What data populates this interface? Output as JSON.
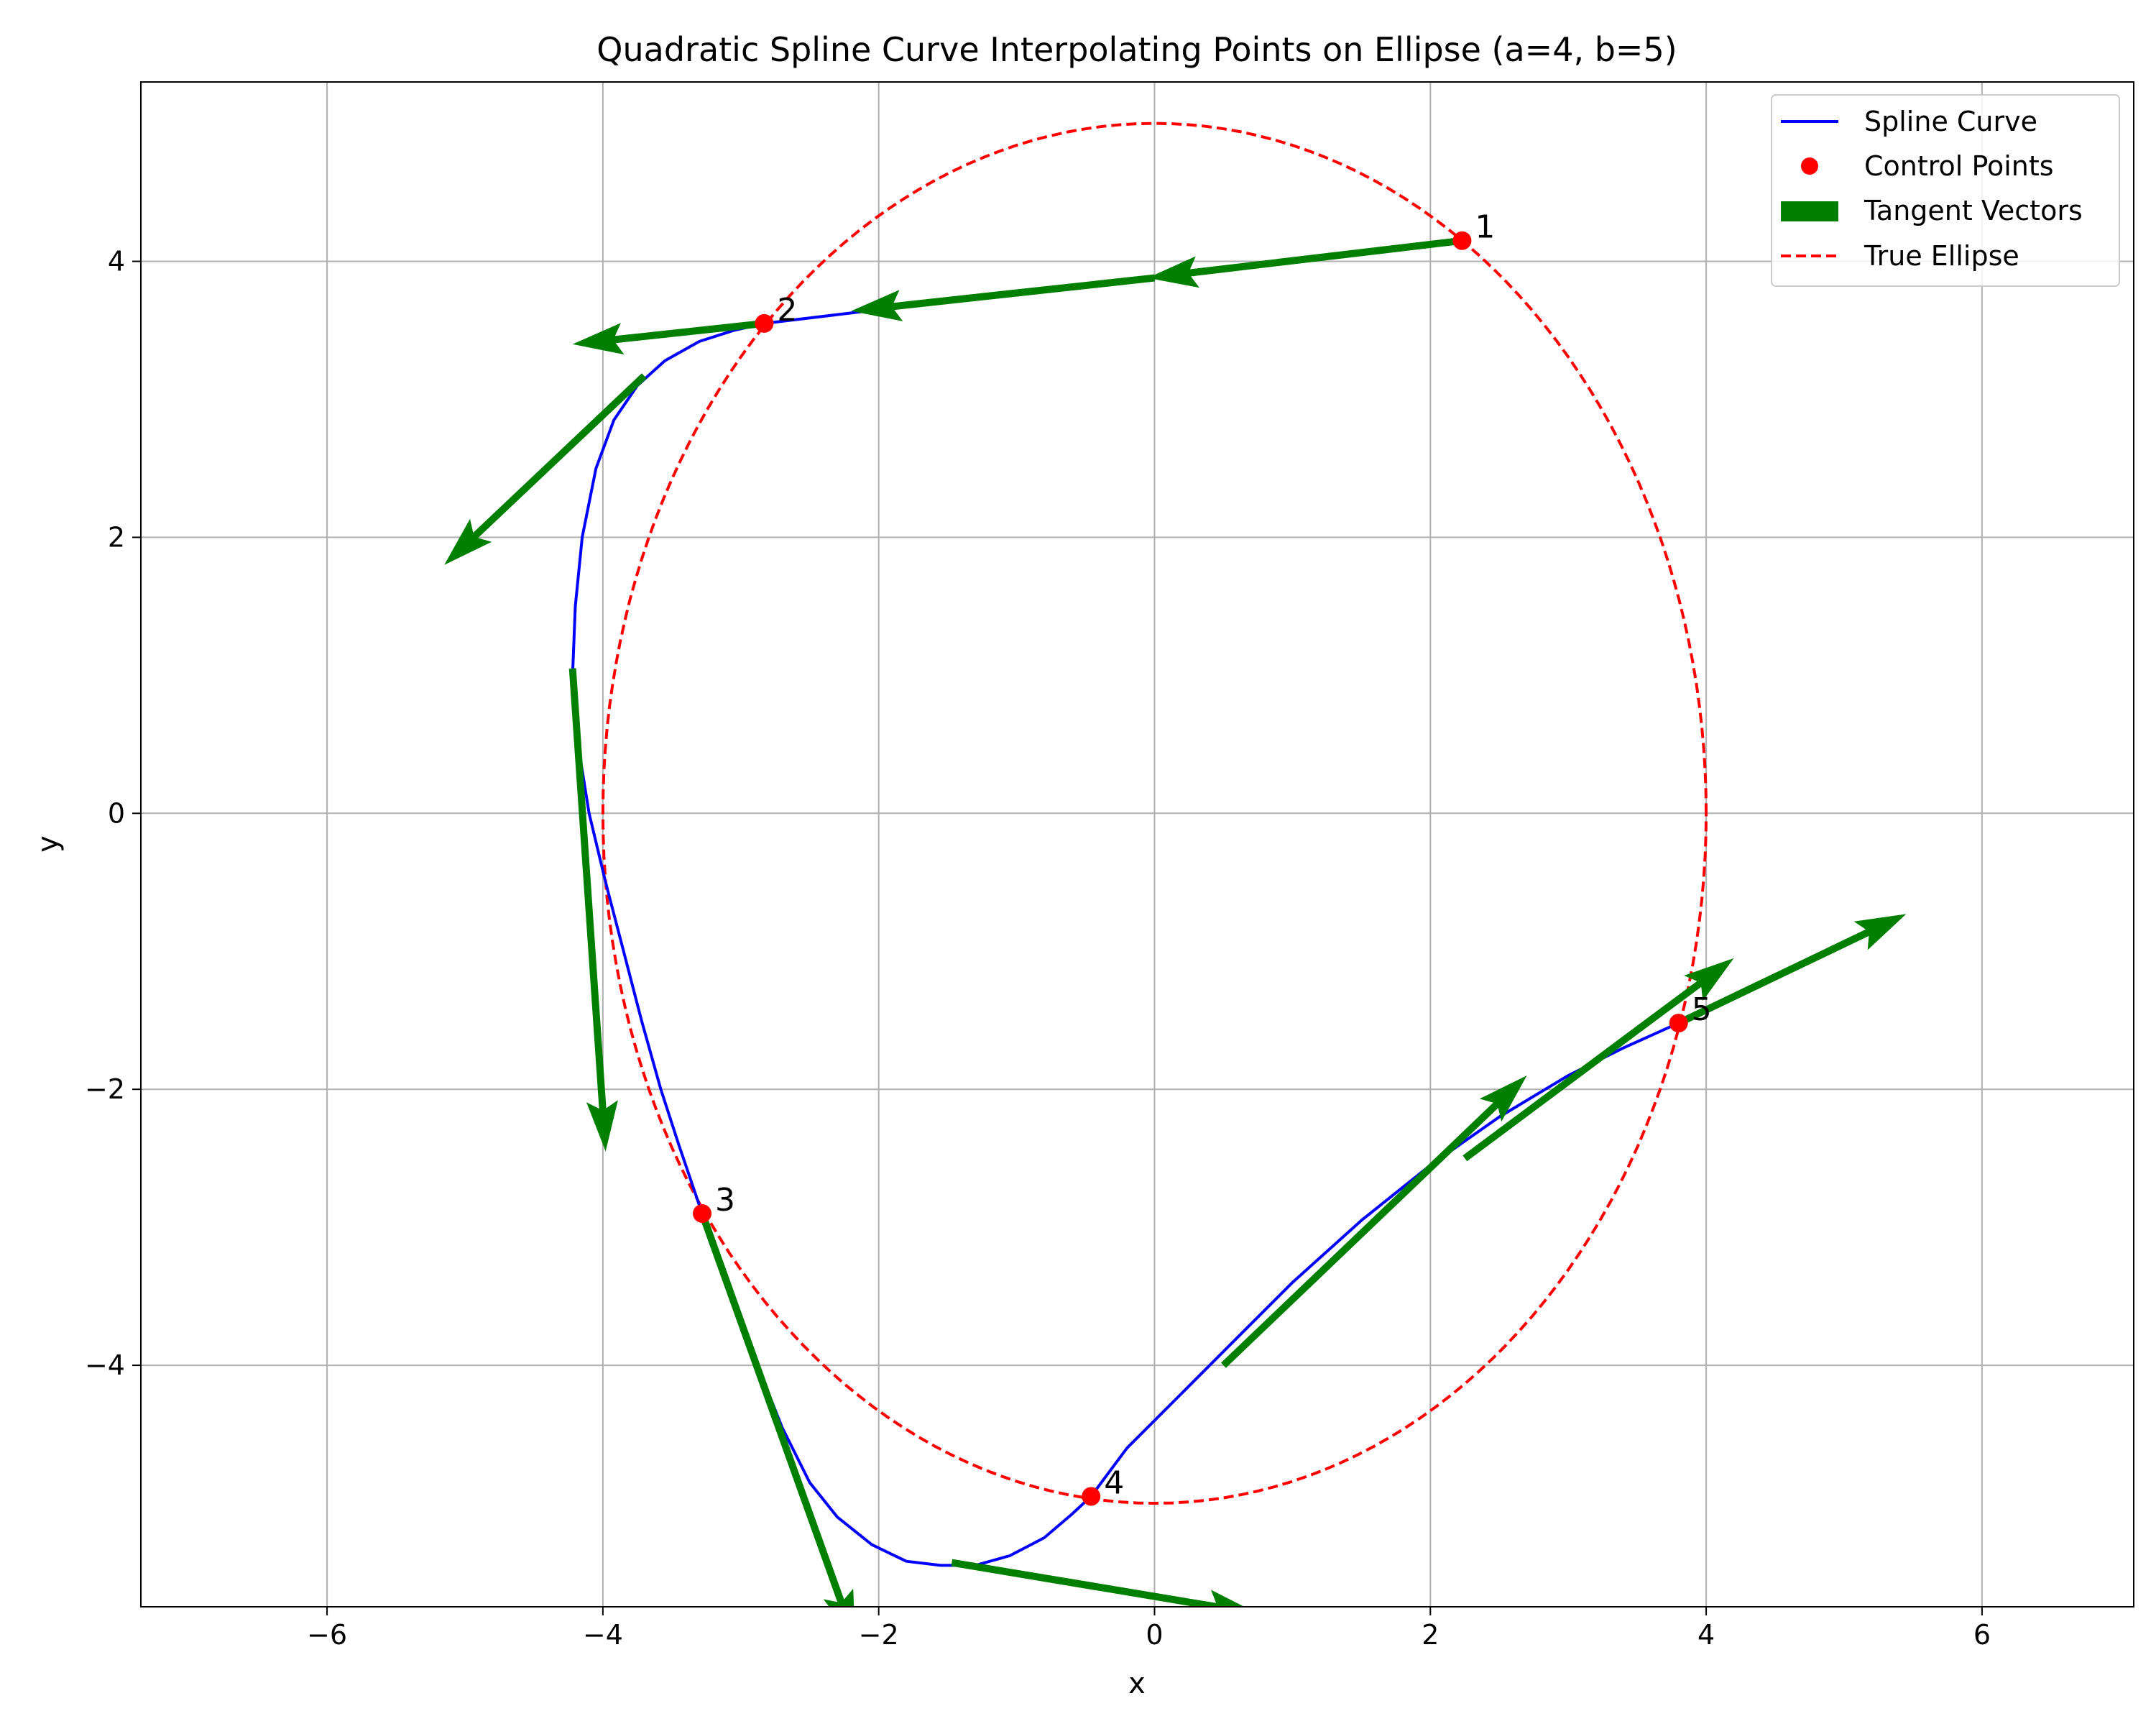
{
  "chart_data": {
    "type": "line",
    "title": "Quadratic Spline Curve Interpolating Points on Ellipse (a=4, b=5)",
    "xlabel": "x",
    "ylabel": "y",
    "xlim": [
      -7.35,
      7.1
    ],
    "ylim": [
      -5.75,
      5.3
    ],
    "xticks": [
      -6,
      -4,
      -2,
      0,
      2,
      4,
      6
    ],
    "yticks": [
      -4,
      -2,
      0,
      2,
      4
    ],
    "xtick_labels": [
      "−6",
      "−4",
      "−2",
      "0",
      "2",
      "4",
      "6"
    ],
    "ytick_labels": [
      "−4",
      "−2",
      "0",
      "2",
      "4"
    ],
    "grid": true,
    "legend_position": "top-right",
    "colors": {
      "spline": "#0000ff",
      "control_points": "#ff0000",
      "tangent": "#007f00",
      "ellipse": "#ff0000",
      "grid": "#b0b0b0"
    },
    "legend": [
      {
        "label": "Spline Curve",
        "style": "line",
        "color": "#0000ff"
      },
      {
        "label": "Control Points",
        "style": "marker",
        "color": "#ff0000"
      },
      {
        "label": "Tangent Vectors",
        "style": "patch",
        "color": "#007f00"
      },
      {
        "label": "True Ellipse",
        "style": "dashed",
        "color": "#ff0000"
      }
    ],
    "ellipse": {
      "a": 4,
      "b": 5,
      "center": [
        0,
        0
      ]
    },
    "control_points": [
      {
        "label": "1",
        "x": 2.23,
        "y": 4.15
      },
      {
        "label": "2",
        "x": -2.83,
        "y": 3.55
      },
      {
        "label": "3",
        "x": -3.28,
        "y": -2.9
      },
      {
        "label": "4",
        "x": -0.46,
        "y": -4.95
      },
      {
        "label": "5",
        "x": 3.8,
        "y": -1.52
      }
    ],
    "spline_curve": [
      [
        2.23,
        4.15
      ],
      [
        0.0,
        3.88
      ],
      [
        -2.0,
        3.65
      ],
      [
        -2.83,
        3.55
      ],
      [
        -3.05,
        3.5
      ],
      [
        -3.3,
        3.42
      ],
      [
        -3.55,
        3.28
      ],
      [
        -3.75,
        3.1
      ],
      [
        -3.92,
        2.85
      ],
      [
        -4.05,
        2.5
      ],
      [
        -4.15,
        2.0
      ],
      [
        -4.2,
        1.5
      ],
      [
        -4.22,
        1.0
      ],
      [
        -4.18,
        0.5
      ],
      [
        -4.1,
        0.0
      ],
      [
        -3.98,
        -0.5
      ],
      [
        -3.85,
        -1.0
      ],
      [
        -3.72,
        -1.5
      ],
      [
        -3.58,
        -2.0
      ],
      [
        -3.45,
        -2.4
      ],
      [
        -3.28,
        -2.9
      ],
      [
        -3.1,
        -3.4
      ],
      [
        -2.9,
        -3.95
      ],
      [
        -2.7,
        -4.45
      ],
      [
        -2.5,
        -4.85
      ],
      [
        -2.3,
        -5.1
      ],
      [
        -2.05,
        -5.3
      ],
      [
        -1.8,
        -5.42
      ],
      [
        -1.55,
        -5.45
      ],
      [
        -1.3,
        -5.45
      ],
      [
        -1.05,
        -5.38
      ],
      [
        -0.8,
        -5.25
      ],
      [
        -0.6,
        -5.08
      ],
      [
        -0.46,
        -4.95
      ],
      [
        -0.2,
        -4.6
      ],
      [
        0.2,
        -4.2
      ],
      [
        0.6,
        -3.8
      ],
      [
        1.0,
        -3.4
      ],
      [
        1.5,
        -2.95
      ],
      [
        2.0,
        -2.55
      ],
      [
        2.5,
        -2.2
      ],
      [
        3.0,
        -1.9
      ],
      [
        3.4,
        -1.7
      ],
      [
        3.8,
        -1.52
      ]
    ],
    "tangent_vectors": [
      {
        "from": [
          2.23,
          4.15
        ],
        "to": [
          -0.05,
          3.88
        ]
      },
      {
        "from": [
          0.0,
          3.88
        ],
        "to": [
          -2.2,
          3.64
        ]
      },
      {
        "from": [
          -2.83,
          3.55
        ],
        "to": [
          -4.22,
          3.4
        ]
      },
      {
        "from": [
          -3.7,
          3.17
        ],
        "to": [
          -5.15,
          1.8
        ]
      },
      {
        "from": [
          -4.22,
          1.05
        ],
        "to": [
          -3.98,
          -2.45
        ]
      },
      {
        "from": [
          -3.28,
          -2.9
        ],
        "to": [
          -2.17,
          -6.0
        ]
      },
      {
        "from": [
          -1.47,
          -5.43
        ],
        "to": [
          0.75,
          -5.8
        ]
      },
      {
        "from": [
          0.5,
          -4.0
        ],
        "to": [
          2.7,
          -1.9
        ]
      },
      {
        "from": [
          2.25,
          -2.5
        ],
        "to": [
          4.2,
          -1.05
        ]
      },
      {
        "from": [
          3.8,
          -1.52
        ],
        "to": [
          5.45,
          -0.73
        ]
      }
    ]
  }
}
